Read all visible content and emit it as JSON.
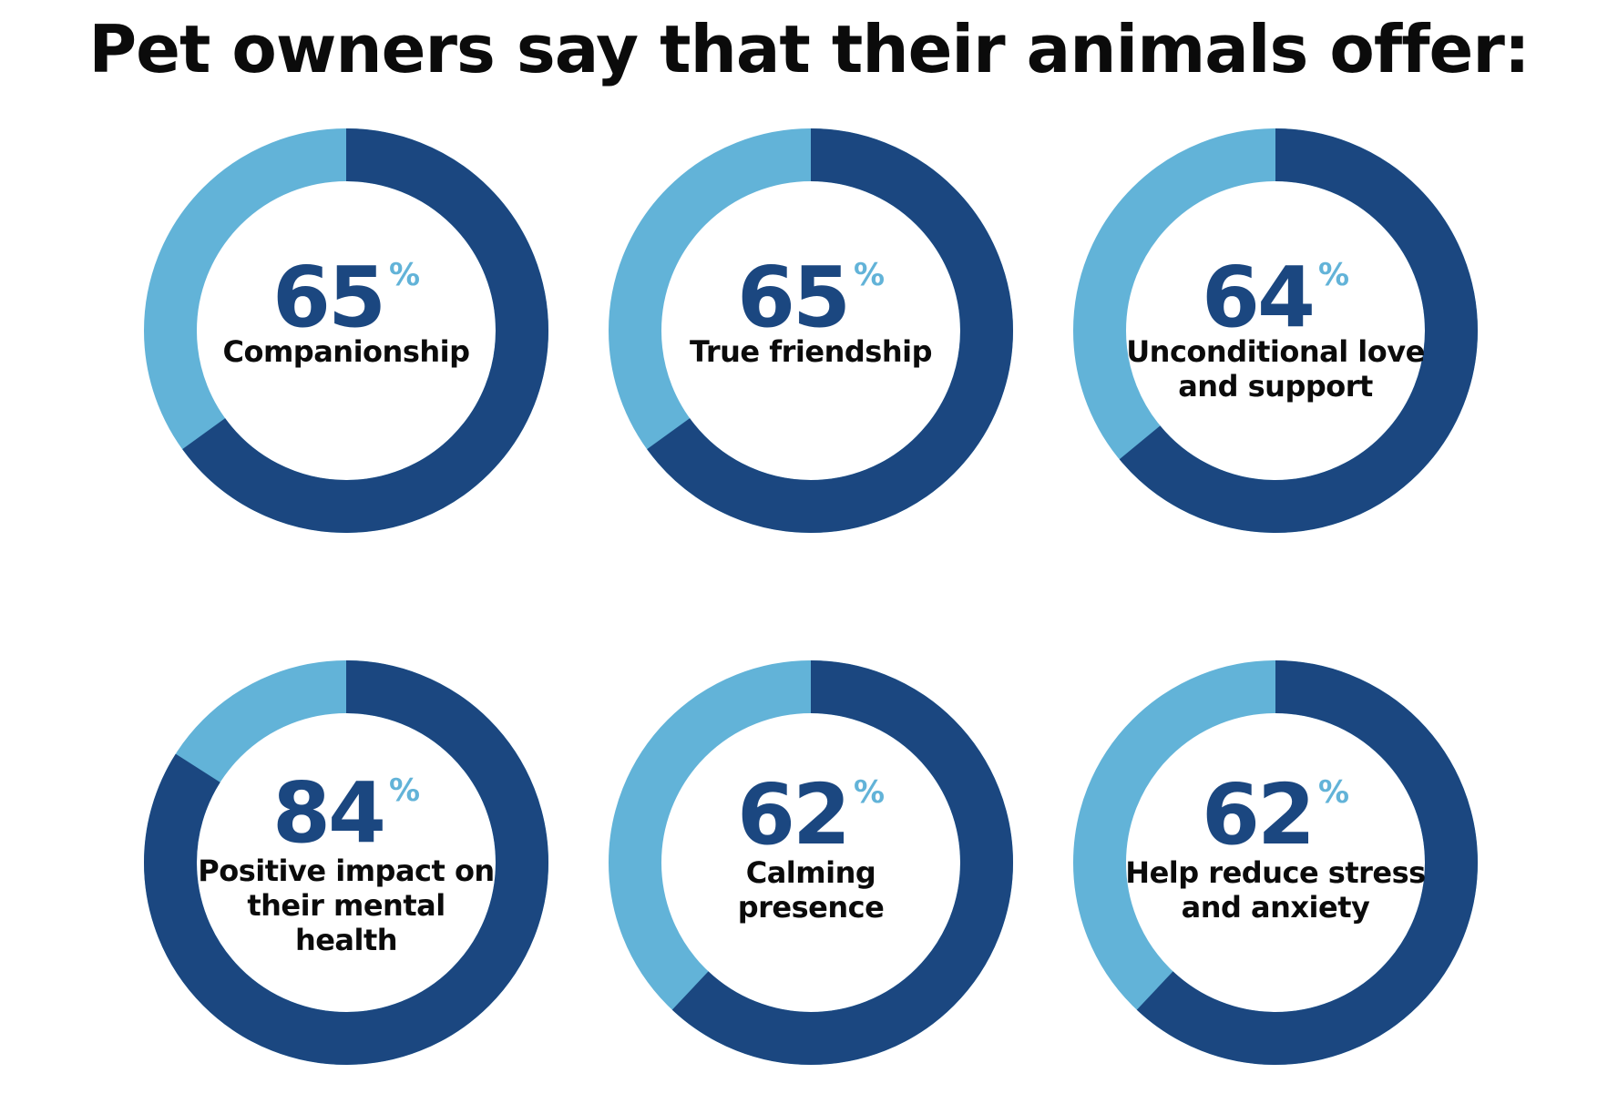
{
  "title": "Pet owners say that their animals offer:",
  "colors": {
    "share": "#1b4780",
    "remainder": "#62b3d8",
    "text": "#0b0b0b"
  },
  "chart_data": [
    {
      "type": "pie",
      "label": "Companionship",
      "value": 65,
      "display_value": "65",
      "unit": "%"
    },
    {
      "type": "pie",
      "label": "True friendship",
      "value": 65,
      "display_value": "65",
      "unit": "%"
    },
    {
      "type": "pie",
      "label": "Unconditional love and support",
      "value": 64,
      "display_value": "64",
      "unit": "%"
    },
    {
      "type": "pie",
      "label": "Positive impact on their mental health",
      "value": 84,
      "display_value": "84",
      "unit": "%"
    },
    {
      "type": "pie",
      "label": "Calming presence",
      "value": 62,
      "display_value": "62",
      "unit": "%"
    },
    {
      "type": "pie",
      "label": "Help reduce stress and anxiety",
      "value": 62,
      "display_value": "62",
      "unit": "%"
    }
  ]
}
